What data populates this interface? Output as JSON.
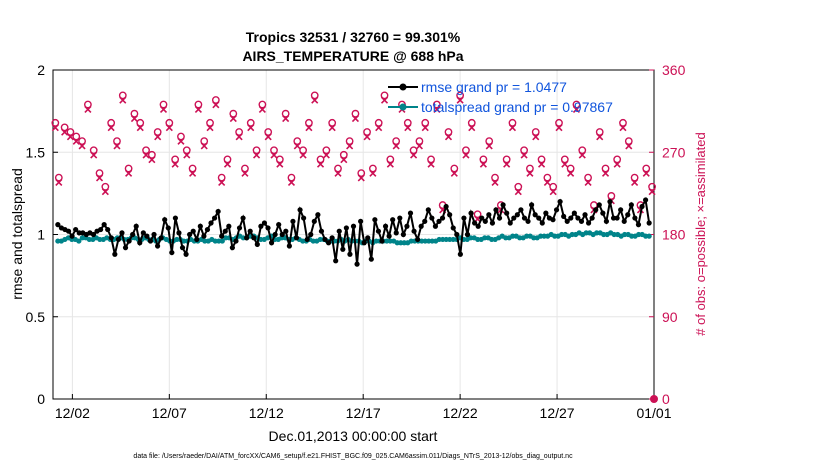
{
  "chart_data": {
    "type": "line",
    "title": [
      "Tropics 32531 / 32760 = 99.301%",
      "AIRS_TEMPERATURE @ 688 hPa"
    ],
    "xlabel": "Dec.01,2013 00:00:00 start",
    "ylabel": "rmse and totalspread",
    "y2label": "# of obs: o=possible; ×=assimilated",
    "xlim": [
      0,
      31
    ],
    "ylim": [
      0,
      2
    ],
    "y2lim": [
      0,
      360
    ],
    "x_ticks": [
      1,
      6,
      11,
      16,
      21,
      26,
      31
    ],
    "x_tick_labels": [
      "12/02",
      "12/07",
      "12/12",
      "12/17",
      "12/22",
      "12/27",
      "01/01"
    ],
    "y_ticks": [
      0,
      0.5,
      1,
      1.5,
      2
    ],
    "y_tick_labels": [
      "0",
      "0.5",
      "1",
      "1.5",
      "2"
    ],
    "y2_ticks": [
      0,
      90,
      180,
      270,
      360
    ],
    "y2_tick_labels": [
      "0",
      "90",
      "180",
      "270",
      "360"
    ],
    "grid": true,
    "legend_position": "top-right",
    "colors": {
      "rmse": "#000000",
      "spread": "#00848a",
      "obs": "#cc1155"
    },
    "series": [
      {
        "name": "rmse grand pr = 1.0477",
        "axis": "left",
        "color": "#000000",
        "marker": "circle",
        "values": [
          1.06,
          1.04,
          1.03,
          1.02,
          0.99,
          1.03,
          1.01,
          1.01,
          1.0,
          1.01,
          1.0,
          1.02,
          1.03,
          1.06,
          1.03,
          0.98,
          0.88,
          0.97,
          1.01,
          0.92,
          0.96,
          1.0,
          1.05,
          0.95,
          1.01,
          0.99,
          0.96,
          1.0,
          0.93,
          0.98,
          1.09,
          1.04,
          0.89,
          1.1,
          1.01,
          0.92,
          0.88,
          1.0,
          1.02,
          0.97,
          1.05,
          0.99,
          1.03,
          1.07,
          1.1,
          1.14,
          0.99,
          1.02,
          1.05,
          0.92,
          0.96,
          1.04,
          1.1,
          0.98,
          1.02,
          0.98,
          0.94,
          1.05,
          1.07,
          1.04,
          0.95,
          1.0,
          1.06,
          1.0,
          1.02,
          0.93,
          1.08,
          0.98,
          1.15,
          1.1,
          0.97,
          1.0,
          1.08,
          1.12,
          1.02,
          0.97,
          0.95,
          0.98,
          0.84,
          1.02,
          0.91,
          1.04,
          0.88,
          1.05,
          0.82,
          1.08,
          0.95,
          0.98,
          0.85,
          1.09,
          1.02,
          0.96,
          1.05,
          0.99,
          1.09,
          1.01,
          1.1,
          1.0,
          1.05,
          1.13,
          1.02,
          0.97,
          1.05,
          1.08,
          1.15,
          1.1,
          1.05,
          1.08,
          1.1,
          1.17,
          1.12,
          1.04,
          1.0,
          0.88,
          1.1,
          1.0,
          1.13,
          1.07,
          1.05,
          1.1,
          1.08,
          1.12,
          1.07,
          1.15,
          1.1,
          1.18,
          1.13,
          1.07,
          1.1,
          1.12,
          1.15,
          1.1,
          1.08,
          1.18,
          1.12,
          1.1,
          1.07,
          1.13,
          1.1,
          1.09,
          1.15,
          1.2,
          1.11,
          1.08,
          1.1,
          1.13,
          1.1,
          1.08,
          1.12,
          1.07,
          1.1,
          1.15,
          1.18,
          1.13,
          1.08,
          1.2,
          1.1,
          1.1,
          1.15,
          1.08,
          1.12,
          1.18,
          1.1,
          1.06,
          1.17,
          1.21,
          1.07
        ]
      },
      {
        "name": "totalspread grand pr = 0.97867",
        "axis": "left",
        "color": "#00848a",
        "marker": "circle",
        "values": [
          0.96,
          0.96,
          0.97,
          0.98,
          0.97,
          0.97,
          0.96,
          0.98,
          0.98,
          0.97,
          0.97,
          0.98,
          0.97,
          0.97,
          0.98,
          0.97,
          0.97,
          0.98,
          0.98,
          0.97,
          0.97,
          0.98,
          0.98,
          0.97,
          0.97,
          0.98,
          0.97,
          0.97,
          0.96,
          0.97,
          0.98,
          0.97,
          0.96,
          0.96,
          0.97,
          0.97,
          0.96,
          0.96,
          0.97,
          0.96,
          0.96,
          0.97,
          0.96,
          0.96,
          0.97,
          0.96,
          0.96,
          0.96,
          0.98,
          0.98,
          0.97,
          0.98,
          0.99,
          0.98,
          0.98,
          0.99,
          0.99,
          0.98,
          0.97,
          0.97,
          0.98,
          0.99,
          0.97,
          0.97,
          0.98,
          0.98,
          0.97,
          0.97,
          0.98,
          0.97,
          0.96,
          0.96,
          0.97,
          0.96,
          0.96,
          0.97,
          0.97,
          0.96,
          0.96,
          0.96,
          0.96,
          0.97,
          0.96,
          0.97,
          0.96,
          0.96,
          0.96,
          0.95,
          0.96,
          0.96,
          0.95,
          0.96,
          0.96,
          0.96,
          0.96,
          0.96,
          0.96,
          0.95,
          0.95,
          0.95,
          0.95,
          0.96,
          0.96,
          0.96,
          0.96,
          0.96,
          0.96,
          0.96,
          0.96,
          0.97,
          0.97,
          0.97,
          0.97,
          0.97,
          0.97,
          0.98,
          0.97,
          0.97,
          0.98,
          0.98,
          0.97,
          0.97,
          0.98,
          0.98,
          0.97,
          0.97,
          0.98,
          0.99,
          0.98,
          0.98,
          0.99,
          0.99,
          0.98,
          0.98,
          0.99,
          0.99,
          0.98,
          0.98,
          0.99,
          0.99,
          0.99,
          1.0,
          0.99,
          0.99,
          1.0,
          1.0,
          0.99,
          1.0,
          1.0,
          1.01,
          1.0,
          1.01,
          1.01,
          1.0,
          1.01,
          1.01,
          1.0,
          1.0,
          1.01,
          1.0,
          1.0,
          0.99,
          1.0,
          1.0,
          0.99,
          0.99,
          1.0,
          1.0,
          0.99,
          0.99
        ]
      },
      {
        "name": "obs possible",
        "axis": "right",
        "color": "#cc1155",
        "marker": "o",
        "x": [
          0.12,
          0.3,
          0.6,
          0.9,
          1.2,
          1.5,
          1.8,
          2.1,
          2.4,
          2.7,
          3.0,
          3.3,
          3.6,
          3.9,
          4.2,
          4.5,
          4.8,
          5.1,
          5.4,
          5.7,
          6.0,
          6.3,
          6.6,
          6.9,
          7.2,
          7.5,
          7.8,
          8.1,
          8.4,
          8.7,
          9.0,
          9.3,
          9.6,
          9.9,
          10.2,
          10.5,
          10.8,
          11.1,
          11.4,
          11.7,
          12.0,
          12.3,
          12.6,
          12.9,
          13.2,
          13.5,
          13.8,
          14.1,
          14.4,
          14.7,
          15.0,
          15.3,
          15.6,
          15.9,
          16.2,
          16.5,
          16.8,
          17.1,
          17.4,
          17.7,
          18.0,
          18.3,
          18.6,
          18.9,
          19.2,
          19.5,
          19.8,
          20.1,
          20.4,
          20.7,
          21.0,
          21.3,
          21.6,
          21.9,
          22.2,
          22.5,
          22.8,
          23.1,
          23.4,
          23.7,
          24.0,
          24.3,
          24.6,
          24.9,
          25.2,
          25.5,
          25.8,
          26.1,
          26.4,
          26.7,
          27.0,
          27.3,
          27.6,
          27.9,
          28.2,
          28.5,
          28.8,
          29.1,
          29.4,
          29.7,
          30.0,
          30.3,
          30.6,
          30.9
        ],
        "values": [
          300,
          240,
          295,
          290,
          285,
          280,
          320,
          270,
          245,
          230,
          300,
          280,
          330,
          250,
          310,
          300,
          270,
          265,
          290,
          320,
          300,
          260,
          285,
          270,
          250,
          320,
          280,
          300,
          325,
          240,
          260,
          310,
          290,
          250,
          300,
          270,
          320,
          290,
          270,
          260,
          310,
          240,
          280,
          270,
          300,
          330,
          260,
          270,
          300,
          250,
          265,
          280,
          310,
          245,
          290,
          250,
          300,
          330,
          260,
          280,
          320,
          300,
          270,
          280,
          300,
          260,
          320,
          210,
          290,
          250,
          330,
          270,
          300,
          200,
          260,
          280,
          240,
          210,
          260,
          300,
          230,
          270,
          250,
          290,
          260,
          240,
          230,
          300,
          260,
          250,
          320,
          270,
          240,
          210,
          290,
          250,
          220,
          260,
          300,
          280,
          240,
          210,
          250,
          230
        ]
      },
      {
        "name": "obs assimilated",
        "axis": "right",
        "color": "#cc1155",
        "marker": "x",
        "x": [
          0.12,
          0.3,
          0.6,
          0.9,
          1.2,
          1.5,
          1.8,
          2.1,
          2.4,
          2.7,
          3.0,
          3.3,
          3.6,
          3.9,
          4.2,
          4.5,
          4.8,
          5.1,
          5.4,
          5.7,
          6.0,
          6.3,
          6.6,
          6.9,
          7.2,
          7.5,
          7.8,
          8.1,
          8.4,
          8.7,
          9.0,
          9.3,
          9.6,
          9.9,
          10.2,
          10.5,
          10.8,
          11.1,
          11.4,
          11.7,
          12.0,
          12.3,
          12.6,
          12.9,
          13.2,
          13.5,
          13.8,
          14.1,
          14.4,
          14.7,
          15.0,
          15.3,
          15.6,
          15.9,
          16.2,
          16.5,
          16.8,
          17.1,
          17.4,
          17.7,
          18.0,
          18.3,
          18.6,
          18.9,
          19.2,
          19.5,
          19.8,
          20.1,
          20.4,
          20.7,
          21.0,
          21.3,
          21.6,
          21.9,
          22.2,
          22.5,
          22.8,
          23.1,
          23.4,
          23.7,
          24.0,
          24.3,
          24.6,
          24.9,
          25.2,
          25.5,
          25.8,
          26.1,
          26.4,
          26.7,
          27.0,
          27.3,
          27.6,
          27.9,
          28.2,
          28.5,
          28.8,
          29.1,
          29.4,
          29.7,
          30.0,
          30.3,
          30.6,
          30.9
        ],
        "values": [
          298,
          238,
          293,
          288,
          283,
          278,
          318,
          268,
          243,
          228,
          298,
          278,
          328,
          248,
          308,
          298,
          268,
          263,
          288,
          318,
          298,
          258,
          283,
          268,
          248,
          318,
          278,
          298,
          323,
          238,
          258,
          308,
          288,
          248,
          298,
          268,
          318,
          288,
          268,
          258,
          308,
          238,
          278,
          268,
          298,
          328,
          258,
          268,
          298,
          248,
          263,
          278,
          308,
          243,
          288,
          248,
          298,
          328,
          258,
          278,
          318,
          298,
          268,
          278,
          298,
          258,
          318,
          208,
          288,
          248,
          328,
          268,
          298,
          198,
          258,
          278,
          238,
          208,
          258,
          298,
          228,
          268,
          248,
          288,
          258,
          238,
          228,
          298,
          258,
          248,
          318,
          268,
          238,
          208,
          288,
          248,
          218,
          258,
          298,
          278,
          238,
          208,
          248,
          228
        ]
      }
    ],
    "footnote": "data file: /Users/raeder/DAI/ATM_forcXX/CAM6_setup/f.e21.FHIST_BGC.f09_025.CAM6assim.011/Diags_NTrS_2013-12/obs_diag_output.nc"
  }
}
